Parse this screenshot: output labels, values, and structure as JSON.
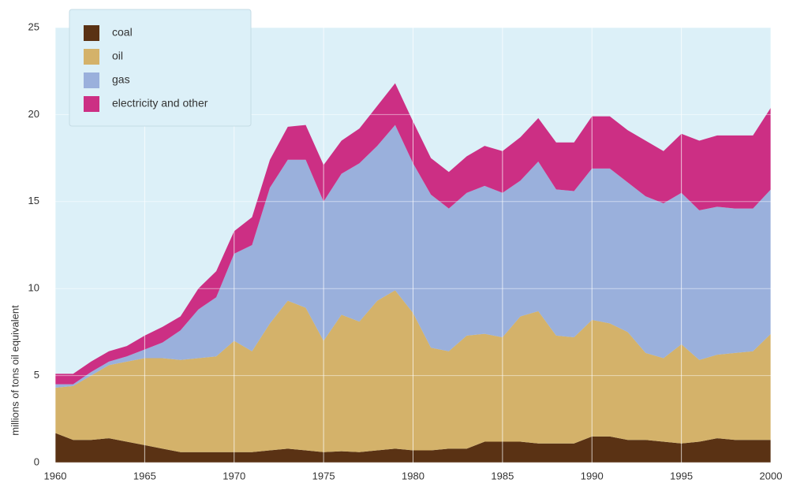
{
  "chart_data": {
    "type": "stacked-area",
    "y_label": "millions of tons oil equivalent",
    "x": [
      1960,
      1961,
      1962,
      1963,
      1964,
      1965,
      1966,
      1967,
      1968,
      1969,
      1970,
      1971,
      1972,
      1973,
      1974,
      1975,
      1976,
      1977,
      1978,
      1979,
      1980,
      1981,
      1982,
      1983,
      1984,
      1985,
      1986,
      1987,
      1988,
      1989,
      1990,
      1991,
      1992,
      1993,
      1994,
      1995,
      1996,
      1997,
      1998,
      1999,
      2000
    ],
    "xlim": [
      1960,
      2000
    ],
    "xticks": [
      1960,
      1965,
      1970,
      1975,
      1980,
      1985,
      1990,
      1995,
      2000
    ],
    "ylim": [
      0,
      25
    ],
    "yticks": [
      0,
      5,
      10,
      15,
      20,
      25
    ],
    "grid": true,
    "legend": "upper left",
    "series": [
      {
        "name": "coal",
        "color": "#5a3214",
        "values": [
          1.7,
          1.3,
          1.3,
          1.4,
          1.2,
          1.0,
          0.8,
          0.6,
          0.6,
          0.6,
          0.6,
          0.6,
          0.7,
          0.8,
          0.7,
          0.6,
          0.65,
          0.6,
          0.7,
          0.8,
          0.7,
          0.7,
          0.8,
          0.8,
          1.2,
          1.2,
          1.2,
          1.1,
          1.1,
          1.1,
          1.5,
          1.5,
          1.3,
          1.3,
          1.2,
          1.1,
          1.2,
          1.4,
          1.3,
          1.3,
          1.3
        ]
      },
      {
        "name": "oil",
        "color": "#d4b26a",
        "values": [
          2.6,
          3.1,
          3.7,
          4.2,
          4.6,
          5.0,
          5.2,
          5.3,
          5.4,
          5.5,
          6.4,
          5.8,
          7.3,
          8.5,
          8.2,
          6.4,
          7.85,
          7.5,
          8.6,
          9.1,
          7.9,
          5.9,
          5.6,
          6.5,
          6.2,
          6.0,
          7.2,
          7.6,
          6.2,
          6.1,
          6.7,
          6.5,
          6.2,
          5.0,
          4.8,
          5.7,
          4.7,
          4.8,
          5.0,
          5.1,
          6.1
        ]
      },
      {
        "name": "gas",
        "color": "#9ab0dc",
        "values": [
          0.2,
          0.1,
          0.2,
          0.2,
          0.3,
          0.5,
          0.9,
          1.7,
          2.8,
          3.4,
          5.0,
          6.1,
          7.8,
          8.1,
          8.5,
          8.0,
          8.1,
          9.1,
          8.9,
          9.5,
          8.6,
          8.8,
          8.2,
          8.2,
          8.5,
          8.3,
          7.8,
          8.6,
          8.4,
          8.4,
          8.7,
          8.9,
          8.6,
          9.0,
          8.9,
          8.7,
          8.6,
          8.5,
          8.3,
          8.2,
          8.3
        ]
      },
      {
        "name": "electricity and other",
        "color": "#cc2f84",
        "values": [
          0.6,
          0.6,
          0.6,
          0.6,
          0.6,
          0.8,
          0.9,
          0.8,
          1.2,
          1.5,
          1.3,
          1.6,
          1.6,
          1.9,
          2.0,
          2.1,
          1.9,
          2.0,
          2.3,
          2.4,
          2.4,
          2.1,
          2.1,
          2.1,
          2.3,
          2.4,
          2.5,
          2.5,
          2.7,
          2.8,
          3.0,
          3.0,
          3.0,
          3.2,
          3.0,
          3.4,
          4.0,
          4.1,
          4.2,
          4.2,
          4.7
        ]
      }
    ]
  }
}
